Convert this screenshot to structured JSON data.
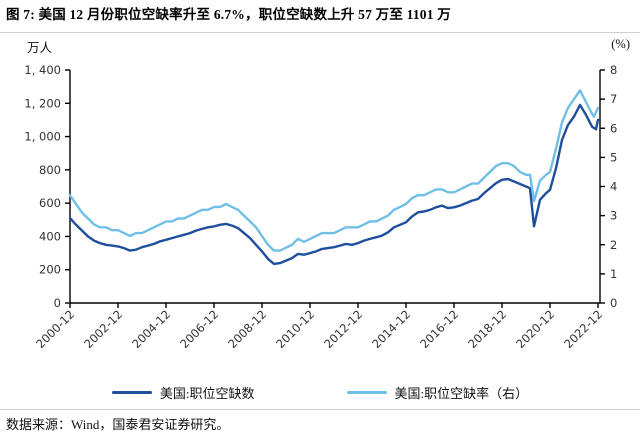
{
  "figure": {
    "title": "图 7: 美国 12 月份职位空缺率升至 6.7%，职位空缺数上升 57 万至 1101 万",
    "left_axis_unit": "万人",
    "right_axis_unit": "(%)",
    "source": "数据来源：Wind，国泰君安证券研究。"
  },
  "legend": [
    {
      "label": "美国:职位空缺数",
      "color": "#1F4E9C"
    },
    {
      "label": "美国:职位空缺率（右）",
      "color": "#70BFE6"
    }
  ],
  "chart_data": {
    "type": "line",
    "title": "图 7: 美国 12 月份职位空缺率升至 6.7%，职位空缺数上升 57 万至 1101 万",
    "x_unit": "months since 2000-12",
    "xlim": [
      0,
      265
    ],
    "x_ticks": [
      0,
      24,
      48,
      72,
      96,
      120,
      144,
      168,
      192,
      216,
      240,
      264
    ],
    "x_tick_labels": [
      "2000-12",
      "2002-12",
      "2004-12",
      "2006-12",
      "2008-12",
      "2010-12",
      "2012-12",
      "2014-12",
      "2016-12",
      "2018-12",
      "2020-12",
      "2022-12"
    ],
    "grid": false,
    "legend_position": "bottom",
    "left_axis": {
      "label": "万人",
      "ylim": [
        0,
        1400
      ],
      "ticks": [
        0,
        200,
        400,
        600,
        800,
        1000,
        1200,
        1400
      ],
      "tick_labels": [
        "0",
        "200",
        "400",
        "600",
        "800",
        "1, 000",
        "1, 200",
        "1, 400"
      ]
    },
    "right_axis": {
      "label": "(%)",
      "ylim": [
        0,
        8
      ],
      "ticks": [
        0,
        1,
        2,
        3,
        4,
        5,
        6,
        7,
        8
      ],
      "tick_labels": [
        "0",
        "1",
        "2",
        "3",
        "4",
        "5",
        "6",
        "7",
        "8"
      ]
    },
    "series": [
      {
        "name": "美国:职位空缺数",
        "axis": "left",
        "unit": "万人",
        "color": "#1F4E9C",
        "points": [
          [
            0,
            510
          ],
          [
            3,
            470
          ],
          [
            6,
            435
          ],
          [
            9,
            400
          ],
          [
            12,
            375
          ],
          [
            15,
            360
          ],
          [
            18,
            350
          ],
          [
            21,
            345
          ],
          [
            24,
            340
          ],
          [
            27,
            330
          ],
          [
            30,
            315
          ],
          [
            33,
            320
          ],
          [
            36,
            335
          ],
          [
            39,
            345
          ],
          [
            42,
            355
          ],
          [
            45,
            370
          ],
          [
            48,
            380
          ],
          [
            51,
            390
          ],
          [
            54,
            400
          ],
          [
            57,
            410
          ],
          [
            60,
            420
          ],
          [
            63,
            435
          ],
          [
            66,
            445
          ],
          [
            69,
            455
          ],
          [
            72,
            460
          ],
          [
            75,
            470
          ],
          [
            78,
            475
          ],
          [
            81,
            465
          ],
          [
            84,
            450
          ],
          [
            87,
            420
          ],
          [
            90,
            390
          ],
          [
            93,
            350
          ],
          [
            96,
            310
          ],
          [
            99,
            265
          ],
          [
            102,
            235
          ],
          [
            105,
            240
          ],
          [
            108,
            255
          ],
          [
            111,
            270
          ],
          [
            114,
            295
          ],
          [
            117,
            290
          ],
          [
            120,
            300
          ],
          [
            123,
            310
          ],
          [
            126,
            325
          ],
          [
            129,
            330
          ],
          [
            132,
            335
          ],
          [
            135,
            345
          ],
          [
            138,
            355
          ],
          [
            141,
            350
          ],
          [
            144,
            360
          ],
          [
            147,
            375
          ],
          [
            150,
            385
          ],
          [
            153,
            395
          ],
          [
            156,
            405
          ],
          [
            159,
            425
          ],
          [
            162,
            455
          ],
          [
            165,
            470
          ],
          [
            168,
            485
          ],
          [
            171,
            520
          ],
          [
            174,
            545
          ],
          [
            177,
            550
          ],
          [
            180,
            560
          ],
          [
            183,
            575
          ],
          [
            186,
            585
          ],
          [
            189,
            570
          ],
          [
            192,
            575
          ],
          [
            195,
            585
          ],
          [
            198,
            600
          ],
          [
            201,
            615
          ],
          [
            204,
            625
          ],
          [
            207,
            660
          ],
          [
            210,
            690
          ],
          [
            213,
            720
          ],
          [
            216,
            740
          ],
          [
            219,
            745
          ],
          [
            222,
            730
          ],
          [
            225,
            715
          ],
          [
            228,
            700
          ],
          [
            230,
            690
          ],
          [
            232,
            460
          ],
          [
            235,
            620
          ],
          [
            238,
            660
          ],
          [
            240,
            680
          ],
          [
            243,
            810
          ],
          [
            246,
            980
          ],
          [
            249,
            1070
          ],
          [
            252,
            1120
          ],
          [
            255,
            1190
          ],
          [
            258,
            1130
          ],
          [
            261,
            1060
          ],
          [
            263,
            1044
          ],
          [
            264,
            1101
          ]
        ]
      },
      {
        "name": "美国:职位空缺率（右）",
        "axis": "right",
        "unit": "%",
        "color": "#70BFE6",
        "points": [
          [
            0,
            3.7
          ],
          [
            3,
            3.4
          ],
          [
            6,
            3.1
          ],
          [
            9,
            2.9
          ],
          [
            12,
            2.7
          ],
          [
            15,
            2.6
          ],
          [
            18,
            2.6
          ],
          [
            21,
            2.5
          ],
          [
            24,
            2.5
          ],
          [
            27,
            2.4
          ],
          [
            30,
            2.3
          ],
          [
            33,
            2.4
          ],
          [
            36,
            2.4
          ],
          [
            39,
            2.5
          ],
          [
            42,
            2.6
          ],
          [
            45,
            2.7
          ],
          [
            48,
            2.8
          ],
          [
            51,
            2.8
          ],
          [
            54,
            2.9
          ],
          [
            57,
            2.9
          ],
          [
            60,
            3.0
          ],
          [
            63,
            3.1
          ],
          [
            66,
            3.2
          ],
          [
            69,
            3.2
          ],
          [
            72,
            3.3
          ],
          [
            75,
            3.3
          ],
          [
            78,
            3.4
          ],
          [
            81,
            3.3
          ],
          [
            84,
            3.2
          ],
          [
            87,
            3.0
          ],
          [
            90,
            2.8
          ],
          [
            93,
            2.6
          ],
          [
            96,
            2.3
          ],
          [
            99,
            2.0
          ],
          [
            102,
            1.8
          ],
          [
            105,
            1.8
          ],
          [
            108,
            1.9
          ],
          [
            111,
            2.0
          ],
          [
            114,
            2.2
          ],
          [
            117,
            2.1
          ],
          [
            120,
            2.2
          ],
          [
            123,
            2.3
          ],
          [
            126,
            2.4
          ],
          [
            129,
            2.4
          ],
          [
            132,
            2.4
          ],
          [
            135,
            2.5
          ],
          [
            138,
            2.6
          ],
          [
            141,
            2.6
          ],
          [
            144,
            2.6
          ],
          [
            147,
            2.7
          ],
          [
            150,
            2.8
          ],
          [
            153,
            2.8
          ],
          [
            156,
            2.9
          ],
          [
            159,
            3.0
          ],
          [
            162,
            3.2
          ],
          [
            165,
            3.3
          ],
          [
            168,
            3.4
          ],
          [
            171,
            3.6
          ],
          [
            174,
            3.7
          ],
          [
            177,
            3.7
          ],
          [
            180,
            3.8
          ],
          [
            183,
            3.9
          ],
          [
            186,
            3.9
          ],
          [
            189,
            3.8
          ],
          [
            192,
            3.8
          ],
          [
            195,
            3.9
          ],
          [
            198,
            4.0
          ],
          [
            201,
            4.1
          ],
          [
            204,
            4.1
          ],
          [
            207,
            4.3
          ],
          [
            210,
            4.5
          ],
          [
            213,
            4.7
          ],
          [
            216,
            4.8
          ],
          [
            219,
            4.8
          ],
          [
            222,
            4.7
          ],
          [
            225,
            4.5
          ],
          [
            228,
            4.4
          ],
          [
            230,
            4.4
          ],
          [
            232,
            3.5
          ],
          [
            235,
            4.2
          ],
          [
            238,
            4.4
          ],
          [
            240,
            4.5
          ],
          [
            243,
            5.3
          ],
          [
            246,
            6.2
          ],
          [
            249,
            6.7
          ],
          [
            252,
            7.0
          ],
          [
            255,
            7.3
          ],
          [
            258,
            6.9
          ],
          [
            261,
            6.5
          ],
          [
            262,
            6.4
          ],
          [
            264,
            6.7
          ]
        ]
      }
    ]
  }
}
